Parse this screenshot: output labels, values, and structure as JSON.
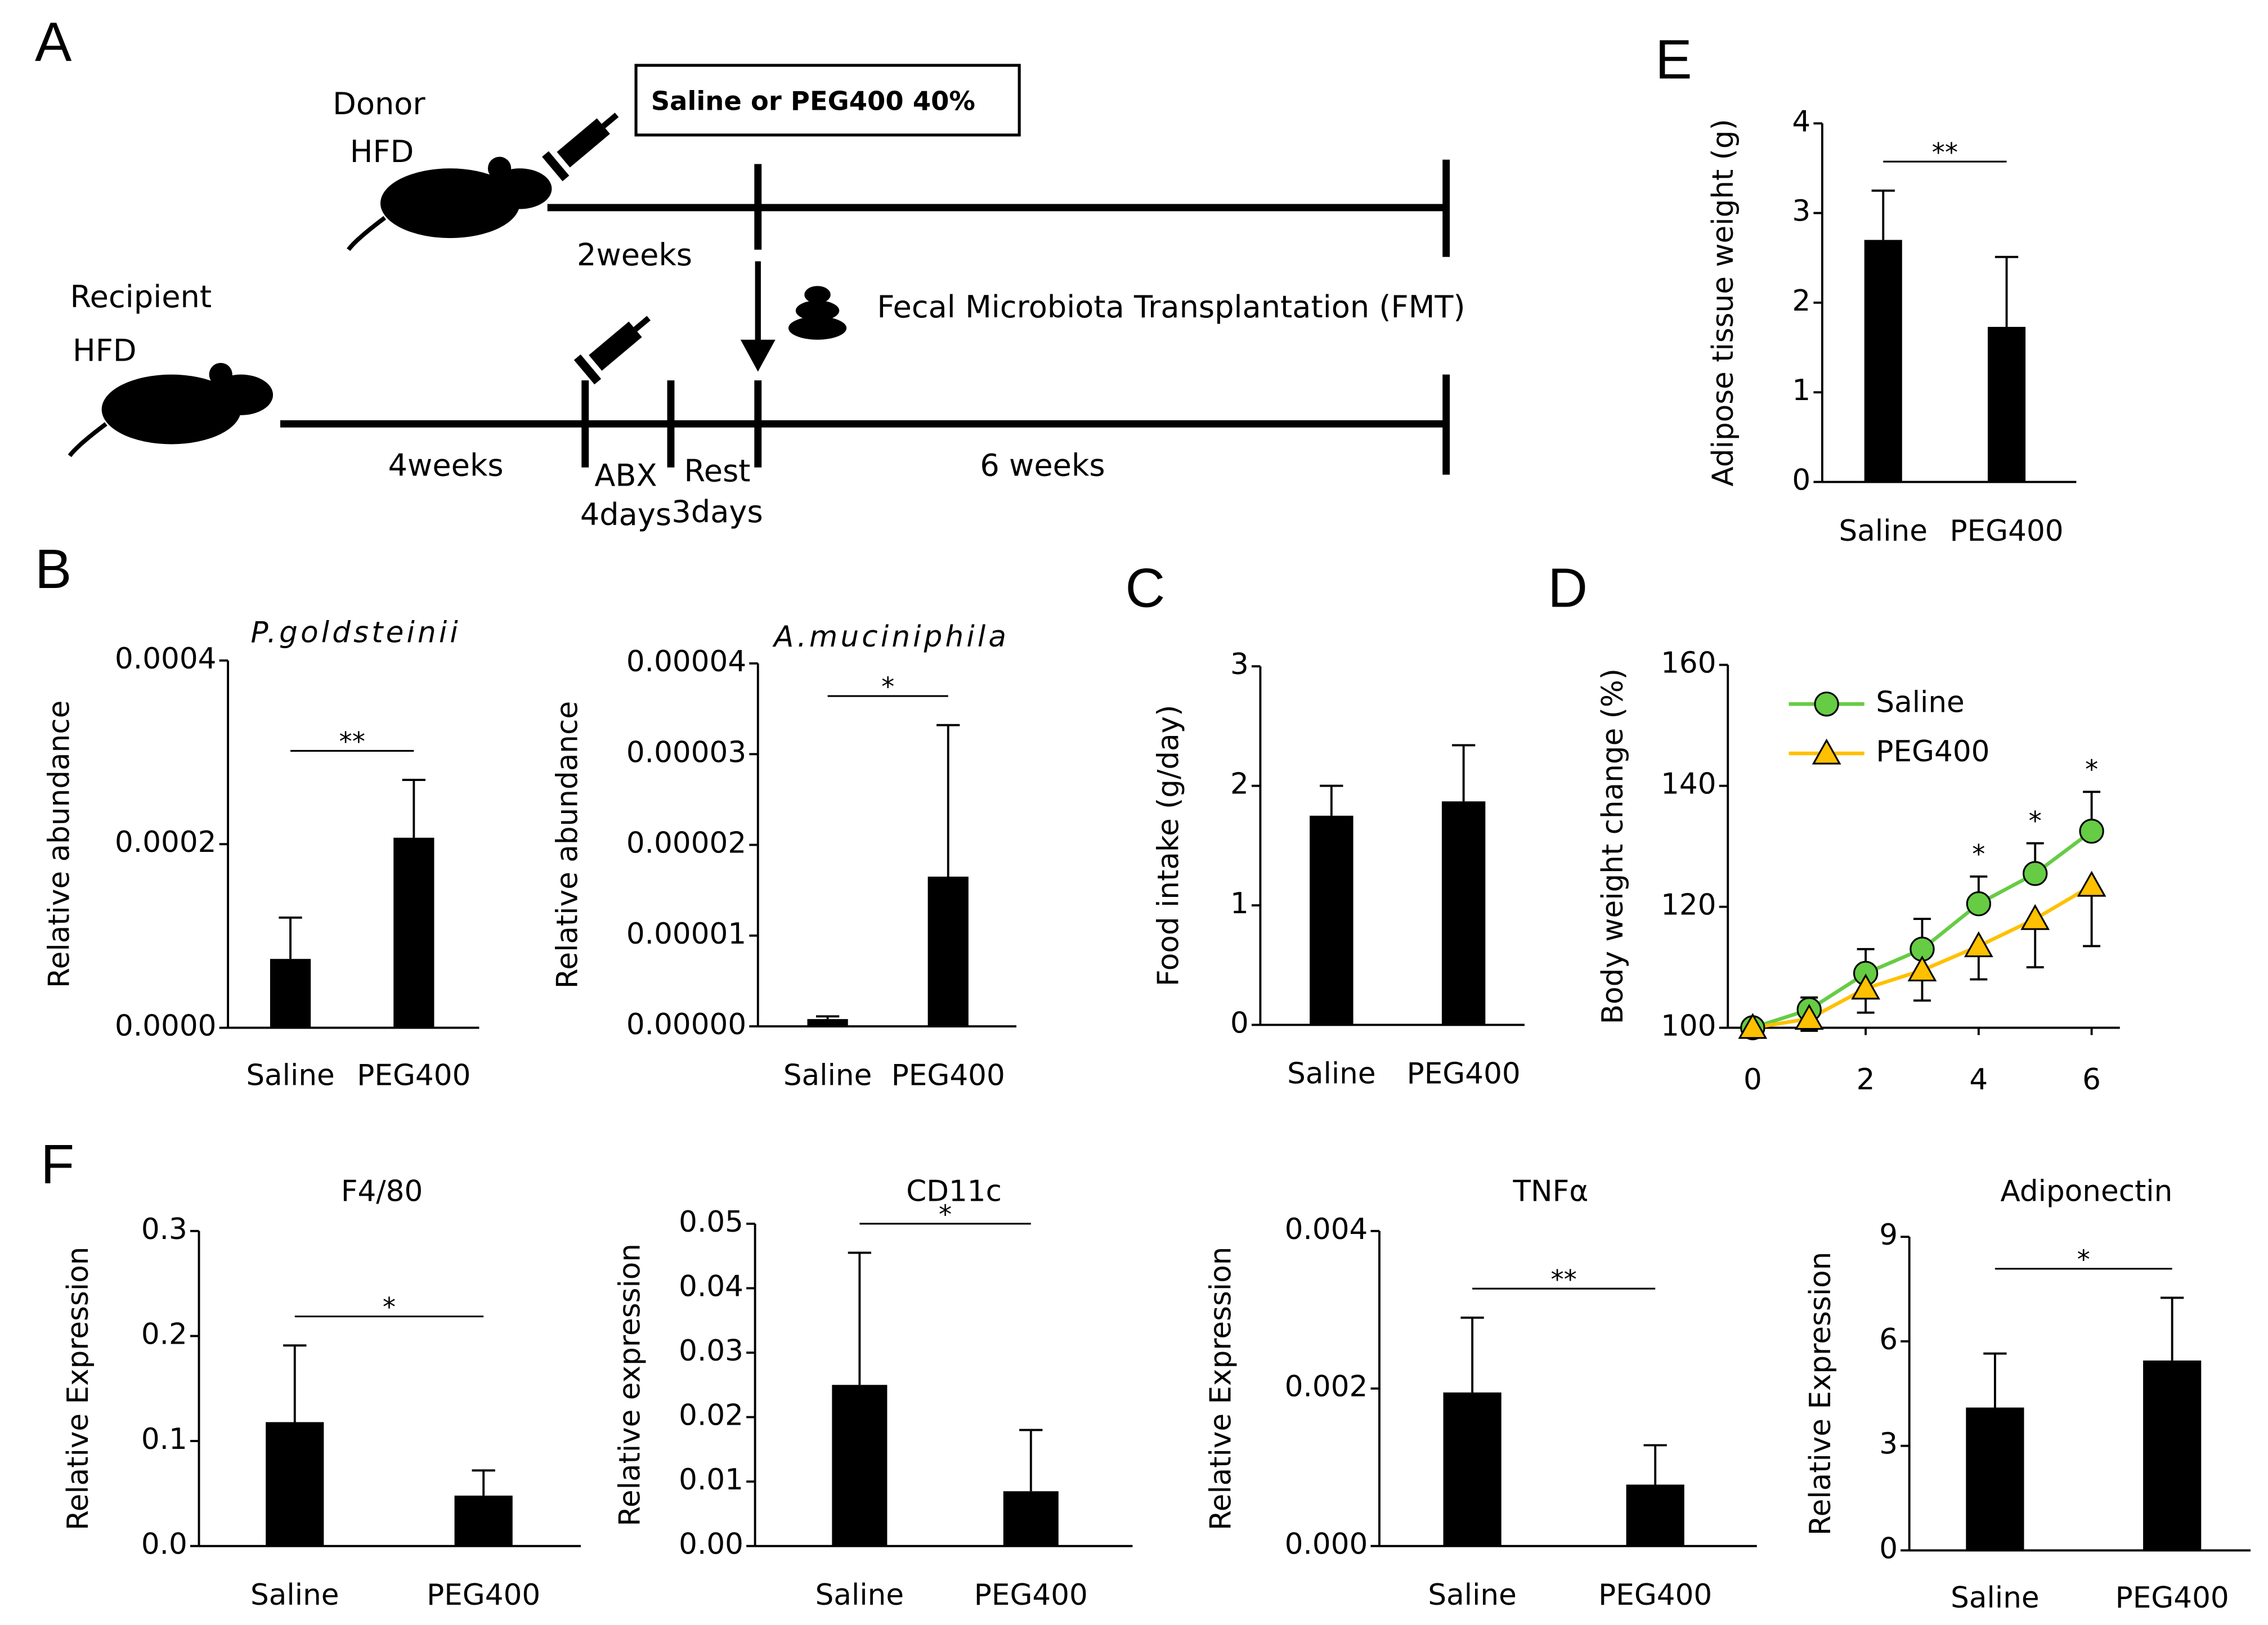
{
  "panel_labels": [
    "A",
    "B",
    "C",
    "D",
    "E",
    "F"
  ],
  "diagram": {
    "donor": "Donor",
    "donor_diet": "HFD",
    "treatment": "Saline or PEG400 40%",
    "donor_period": "2weeks",
    "transfer": "Fecal Microbiota Transplantation (FMT)",
    "recipient": "Recipient",
    "recipient_diet": "HFD",
    "recipient_period": "4weeks",
    "abx": "ABX",
    "abx_period": "4days",
    "rest": "Rest",
    "rest_period": "3days",
    "follow_up": "6 weeks"
  },
  "chart_data": [
    {
      "type": "bar",
      "title": "P.goldsteinii",
      "ylabel": "Relative abundance",
      "categories": [
        "Saline",
        "PEG400"
      ],
      "values": [
        7.5e-05,
        0.000207
      ],
      "errors": [
        4.5e-05,
        6.3e-05
      ],
      "color": "#000000",
      "significance": "**",
      "ylim": [
        0,
        0.0004
      ],
      "yticks": [
        {
          "value": 0,
          "label": "0.0000"
        },
        {
          "value": 0.0002,
          "label": "0.0002"
        },
        {
          "value": 0.0004,
          "label": "0.0004"
        }
      ]
    },
    {
      "type": "bar",
      "title": "A.muciniphila",
      "ylabel": "Relative abundance",
      "categories": [
        "Saline",
        "PEG400"
      ],
      "values": [
        8e-07,
        1.65e-05
      ],
      "errors": [
        3e-07,
        1.67e-05
      ],
      "color": "#000000",
      "significance": "*",
      "ylim": [
        0,
        4e-05
      ],
      "yticks": [
        {
          "value": 0,
          "label": "0.00000"
        },
        {
          "value": 1e-05,
          "label": "0.00001"
        },
        {
          "value": 2e-05,
          "label": "0.00002"
        },
        {
          "value": 3e-05,
          "label": "0.00003"
        },
        {
          "value": 4e-05,
          "label": "0.00004"
        }
      ]
    },
    {
      "type": "bar",
      "ylabel": "Food intake (g/day)",
      "categories": [
        "Saline",
        "PEG400"
      ],
      "values": [
        1.75,
        1.87
      ],
      "errors": [
        0.25,
        0.47
      ],
      "color": "#000000",
      "ylim": [
        0,
        3
      ],
      "yticks": [
        0,
        1,
        2,
        3
      ]
    },
    {
      "type": "line",
      "ylabel": "Body weight change (%)",
      "x": [
        0,
        1,
        2,
        3,
        4,
        5,
        6
      ],
      "series": [
        {
          "name": "Saline",
          "color": "#66cc44",
          "marker": "circle",
          "values": [
            100,
            103,
            109,
            113,
            120.5,
            125.5,
            132.5
          ],
          "errors": [
            1,
            2,
            4,
            5,
            4.5,
            5,
            6.5
          ]
        },
        {
          "name": "PEG400",
          "color": "#ffc000",
          "marker": "triangle",
          "values": [
            100,
            101.5,
            106.5,
            109.5,
            113.5,
            118,
            123.5
          ],
          "errors": [
            1,
            2,
            4,
            5,
            5.5,
            8,
            10
          ]
        }
      ],
      "significance": [
        null,
        null,
        null,
        null,
        "*",
        "*",
        "*"
      ],
      "xlim": [
        -0.44,
        6.5
      ],
      "xticks": [
        0,
        2,
        4,
        6
      ],
      "ylim": [
        100,
        160
      ],
      "yticks": [
        100,
        120,
        140,
        160
      ],
      "legend": "upper left"
    },
    {
      "type": "bar",
      "ylabel": "Adipose tissue weight (g)",
      "categories": [
        "Saline",
        "PEG400"
      ],
      "values": [
        2.7,
        1.73
      ],
      "errors": [
        0.55,
        0.78
      ],
      "color": "#000000",
      "significance": "**",
      "ylim": [
        0,
        4
      ],
      "yticks": [
        0,
        1,
        2,
        3,
        4
      ]
    },
    {
      "type": "bar",
      "title": "F4/80",
      "ylabel": "Relative Expression",
      "categories": [
        "Saline",
        "PEG400"
      ],
      "values": [
        0.118,
        0.048
      ],
      "errors": [
        0.073,
        0.024
      ],
      "color": "#000000",
      "significance": "*",
      "ylim": [
        0,
        0.3
      ],
      "yticks": [
        {
          "value": 0,
          "label": "0.0"
        },
        0.1,
        0.2,
        0.3
      ]
    },
    {
      "type": "bar",
      "title": "CD11c",
      "ylabel": "Relative expression",
      "categories": [
        "Saline",
        "PEG400"
      ],
      "values": [
        0.025,
        0.0085
      ],
      "errors": [
        0.0205,
        0.0095
      ],
      "color": "#000000",
      "significance": "*",
      "ylim": [
        0,
        0.05
      ],
      "yticks": [
        {
          "value": 0,
          "label": "0.00"
        },
        0.01,
        0.02,
        0.03,
        0.04,
        0.05
      ]
    },
    {
      "type": "bar",
      "title": "TNFα",
      "ylabel": "Relative Expression",
      "categories": [
        "Saline",
        "PEG400"
      ],
      "values": [
        0.00195,
        0.00078
      ],
      "errors": [
        0.00095,
        0.0005
      ],
      "color": "#000000",
      "significance": "**",
      "ylim": [
        0,
        0.004
      ],
      "yticks": [
        {
          "value": 0,
          "label": "0.000"
        },
        0.002,
        0.004
      ]
    },
    {
      "type": "bar",
      "title": "Adiponectin",
      "ylabel": "Relative Expression",
      "categories": [
        "Saline",
        "PEG400"
      ],
      "values": [
        4.1,
        5.45
      ],
      "errors": [
        1.55,
        1.8
      ],
      "color": "#000000",
      "significance": "*",
      "ylim": [
        0,
        9
      ],
      "yticks": [
        0,
        3,
        6,
        9
      ]
    }
  ]
}
